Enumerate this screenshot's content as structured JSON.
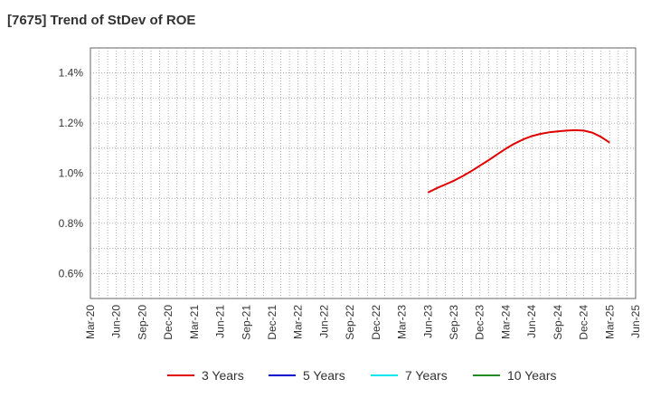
{
  "chart_data": {
    "type": "line",
    "title": "[7675]  Trend of StDev of ROE",
    "xlabel": "",
    "ylabel": "",
    "x_ticks": [
      "Mar-20",
      "Jun-20",
      "Sep-20",
      "Dec-20",
      "Mar-21",
      "Jun-21",
      "Sep-21",
      "Dec-21",
      "Mar-22",
      "Jun-22",
      "Sep-22",
      "Dec-22",
      "Mar-23",
      "Jun-23",
      "Sep-23",
      "Dec-23",
      "Mar-24",
      "Jun-24",
      "Sep-24",
      "Dec-24",
      "Mar-25",
      "Jun-25"
    ],
    "y_ticks": [
      "0.6%",
      "0.8%",
      "1.0%",
      "1.2%",
      "1.4%"
    ],
    "ylim": [
      0.5,
      1.5
    ],
    "grid": true,
    "legend_position": "bottom",
    "series": [
      {
        "name": "3 Years",
        "color": "#e00000",
        "points": [
          [
            "Jun-23",
            0.923
          ],
          [
            "Jul-23",
            0.94
          ],
          [
            "Aug-23",
            0.955
          ],
          [
            "Sep-23",
            0.97
          ],
          [
            "Oct-23",
            0.988
          ],
          [
            "Nov-23",
            1.008
          ],
          [
            "Dec-23",
            1.03
          ],
          [
            "Jan-24",
            1.052
          ],
          [
            "Feb-24",
            1.075
          ],
          [
            "Mar-24",
            1.098
          ],
          [
            "Apr-24",
            1.118
          ],
          [
            "May-24",
            1.135
          ],
          [
            "Jun-24",
            1.148
          ],
          [
            "Jul-24",
            1.157
          ],
          [
            "Aug-24",
            1.163
          ],
          [
            "Sep-24",
            1.167
          ],
          [
            "Oct-24",
            1.17
          ],
          [
            "Nov-24",
            1.172
          ],
          [
            "Dec-24",
            1.17
          ],
          [
            "Jan-25",
            1.162
          ],
          [
            "Feb-25",
            1.145
          ],
          [
            "Mar-25",
            1.122
          ]
        ]
      },
      {
        "name": "5 Years",
        "color": "#0000cc",
        "points": []
      },
      {
        "name": "7 Years",
        "color": "#00e5ee",
        "points": []
      },
      {
        "name": "10 Years",
        "color": "#228b22",
        "points": []
      }
    ]
  }
}
